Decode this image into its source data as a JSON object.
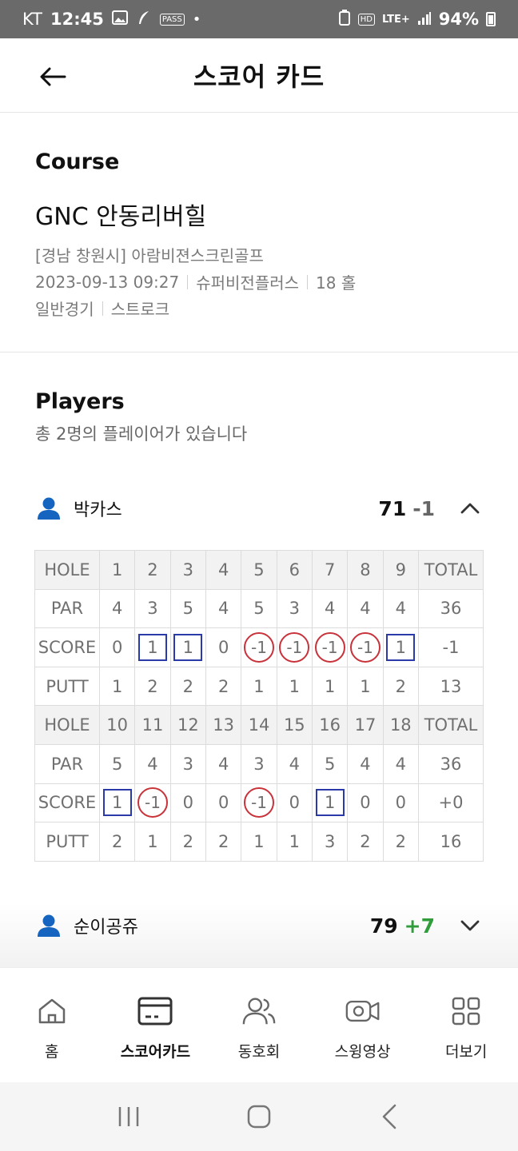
{
  "status_bar": {
    "carrier": "KT",
    "time": "12:45",
    "pass_badge": "PASS",
    "hd_badge": "HD",
    "network": "LTE+",
    "battery": "94%"
  },
  "header": {
    "title": "스코어 카드"
  },
  "course": {
    "section_title": "Course",
    "name": "GNC 안동리버힐",
    "location": "[경남 창원시] 아람비젼스크린골프",
    "datetime": "2023-09-13 09:27",
    "system": "슈퍼비전플러스",
    "holes": "18 홀",
    "game_type": "일반경기",
    "play_mode": "스트로크"
  },
  "players_section": {
    "title": "Players",
    "subtitle": "총 2명의 플레이어가 있습니다"
  },
  "players": [
    {
      "name": "박카스",
      "total": "71",
      "diff": "-1",
      "expanded": true,
      "front": {
        "hole_label": "HOLE",
        "total_label": "TOTAL",
        "holes": [
          "1",
          "2",
          "3",
          "4",
          "5",
          "6",
          "7",
          "8",
          "9"
        ],
        "par_label": "PAR",
        "par": [
          "4",
          "3",
          "5",
          "4",
          "5",
          "3",
          "4",
          "4",
          "4"
        ],
        "par_total": "36",
        "score_label": "SCORE",
        "score": [
          "0",
          "1",
          "1",
          "0",
          "-1",
          "-1",
          "-1",
          "-1",
          "1"
        ],
        "score_total": "-1",
        "putt_label": "PUTT",
        "putt": [
          "1",
          "2",
          "2",
          "2",
          "1",
          "1",
          "1",
          "1",
          "2"
        ],
        "putt_total": "13"
      },
      "back": {
        "hole_label": "HOLE",
        "total_label": "TOTAL",
        "holes": [
          "10",
          "11",
          "12",
          "13",
          "14",
          "15",
          "16",
          "17",
          "18"
        ],
        "par_label": "PAR",
        "par": [
          "5",
          "4",
          "3",
          "4",
          "3",
          "4",
          "5",
          "4",
          "4"
        ],
        "par_total": "36",
        "score_label": "SCORE",
        "score": [
          "1",
          "-1",
          "0",
          "0",
          "-1",
          "0",
          "1",
          "0",
          "0"
        ],
        "score_total": "+0",
        "putt_label": "PUTT",
        "putt": [
          "2",
          "1",
          "2",
          "2",
          "1",
          "1",
          "3",
          "2",
          "2"
        ],
        "putt_total": "16"
      }
    },
    {
      "name": "순이공쥬",
      "total": "79",
      "diff": "+7",
      "expanded": false
    }
  ],
  "bottom_nav": {
    "items": [
      {
        "label": "홈",
        "icon": "home-icon"
      },
      {
        "label": "스코어카드",
        "icon": "scorecard-icon",
        "active": true
      },
      {
        "label": "동호회",
        "icon": "club-icon"
      },
      {
        "label": "스윙영상",
        "icon": "video-icon"
      },
      {
        "label": "더보기",
        "icon": "more-icon"
      }
    ]
  },
  "colors": {
    "accent_blue": "#1565c0",
    "bogey_box": "#2a3aa8",
    "birdie_circle": "#c8323a",
    "positive_green": "#2e9d3a"
  }
}
